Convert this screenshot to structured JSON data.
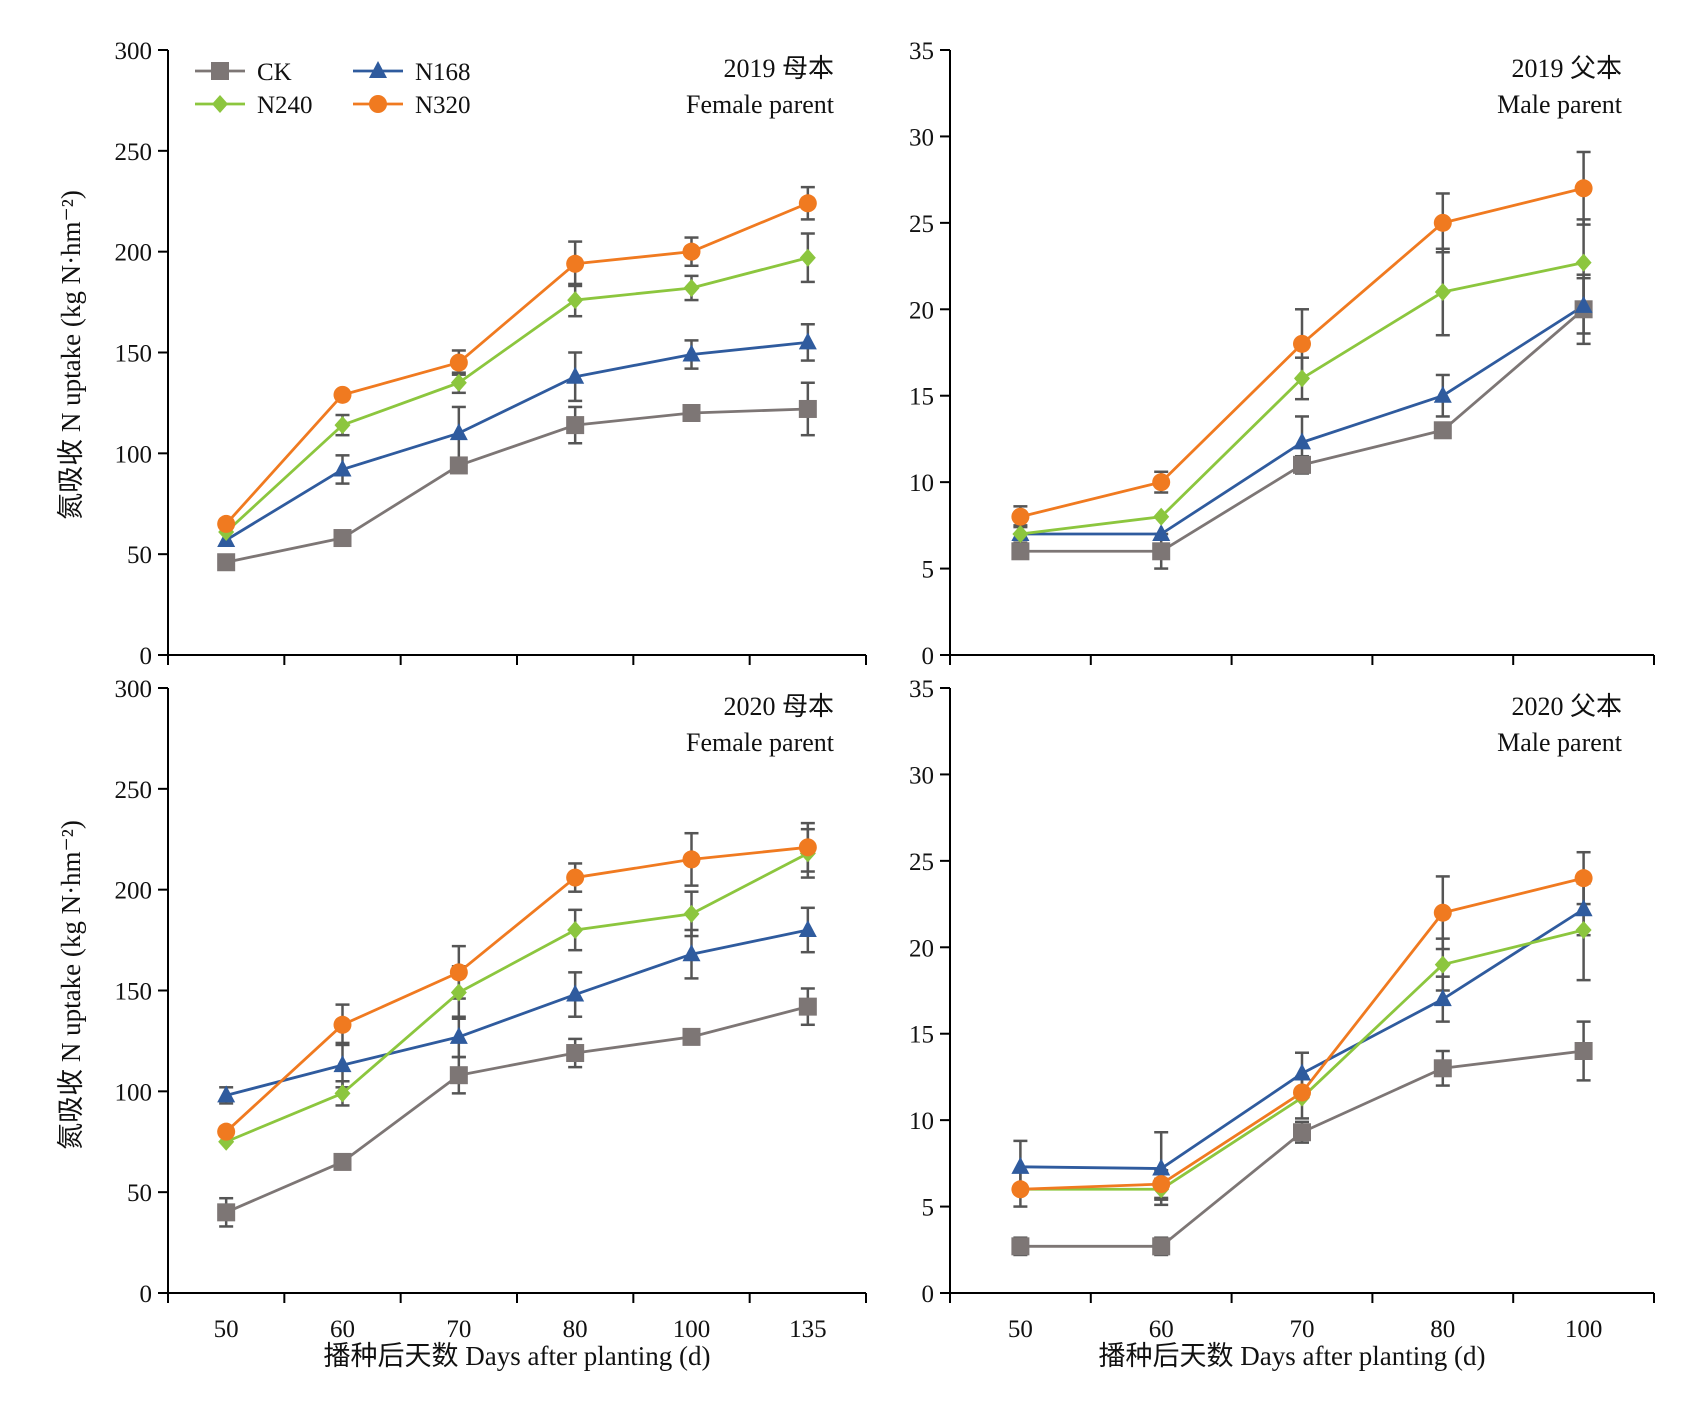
{
  "y_axis_title": "氮吸收 N uptake (kg N·hm⁻²)",
  "x_axis_title": "播种后天数 Days after planting (d)",
  "legend": [
    {
      "name": "CK",
      "color": "#7d7675",
      "marker": "square"
    },
    {
      "name": "N168",
      "color": "#2f5b9e",
      "marker": "triangle"
    },
    {
      "name": "N240",
      "color": "#8cc63e",
      "marker": "diamond"
    },
    {
      "name": "N320",
      "color": "#f07a20",
      "marker": "circle"
    }
  ],
  "chart_data": [
    {
      "type": "line",
      "title": [
        "2019 母本",
        "Female parent"
      ],
      "categories": [
        "50",
        "60",
        "70",
        "80",
        "100",
        "135"
      ],
      "ylim": [
        0,
        300
      ],
      "yticks": [
        0,
        50,
        100,
        150,
        200,
        250,
        300
      ],
      "show_x_tick_labels": false,
      "series": [
        {
          "name": "CK",
          "values": [
            46,
            58,
            94,
            114,
            120,
            122
          ],
          "errors": [
            0,
            0,
            0,
            9,
            0,
            13
          ]
        },
        {
          "name": "N168",
          "values": [
            57,
            92,
            110,
            138,
            149,
            155
          ],
          "errors": [
            0,
            7,
            13,
            12,
            7,
            9
          ]
        },
        {
          "name": "N240",
          "values": [
            61,
            114,
            135,
            176,
            182,
            197
          ],
          "errors": [
            0,
            5,
            5,
            8,
            6,
            12
          ]
        },
        {
          "name": "N320",
          "values": [
            65,
            129,
            145,
            194,
            200,
            224
          ],
          "errors": [
            0,
            0,
            6,
            11,
            7,
            8
          ]
        }
      ]
    },
    {
      "type": "line",
      "title": [
        "2019 父本",
        "Male parent"
      ],
      "categories": [
        "50",
        "60",
        "70",
        "80",
        "100"
      ],
      "ylim": [
        0,
        35
      ],
      "yticks": [
        0,
        5,
        10,
        15,
        20,
        25,
        30,
        35
      ],
      "show_x_tick_labels": false,
      "series": [
        {
          "name": "CK",
          "values": [
            6,
            6,
            11,
            13,
            20
          ],
          "errors": [
            0.4,
            1.0,
            0.5,
            0.4,
            2.0
          ]
        },
        {
          "name": "N168",
          "values": [
            7,
            7,
            12.3,
            15,
            20.2
          ],
          "errors": [
            0.5,
            0,
            1.5,
            1.2,
            1.6
          ]
        },
        {
          "name": "N240",
          "values": [
            7,
            8,
            16,
            21,
            22.7
          ],
          "errors": [
            0,
            0,
            1.2,
            2.5,
            2.5
          ]
        },
        {
          "name": "N320",
          "values": [
            8,
            10,
            18,
            25,
            27
          ],
          "errors": [
            0.6,
            0.6,
            2.0,
            1.7,
            2.1
          ]
        }
      ]
    },
    {
      "type": "line",
      "title": [
        "2020 母本",
        "Female parent"
      ],
      "categories": [
        "50",
        "60",
        "70",
        "80",
        "100",
        "135"
      ],
      "ylim": [
        0,
        300
      ],
      "yticks": [
        0,
        50,
        100,
        150,
        200,
        250,
        300
      ],
      "show_x_tick_labels": true,
      "series": [
        {
          "name": "CK",
          "values": [
            40,
            65,
            108,
            119,
            127,
            142
          ],
          "errors": [
            7,
            0,
            9,
            7,
            0,
            9
          ]
        },
        {
          "name": "N168",
          "values": [
            98,
            113,
            127,
            148,
            168,
            180
          ],
          "errors": [
            4,
            11,
            10,
            11,
            12,
            11
          ]
        },
        {
          "name": "N240",
          "values": [
            75,
            99,
            149,
            180,
            188,
            218
          ],
          "errors": [
            0,
            6,
            13,
            10,
            11,
            12
          ]
        },
        {
          "name": "N320",
          "values": [
            80,
            133,
            159,
            206,
            215,
            221
          ],
          "errors": [
            0,
            10,
            13,
            7,
            13,
            12
          ]
        }
      ]
    },
    {
      "type": "line",
      "title": [
        "2020 父本",
        "Male parent"
      ],
      "categories": [
        "50",
        "60",
        "70",
        "80",
        "100"
      ],
      "ylim": [
        0,
        35
      ],
      "yticks": [
        0,
        5,
        10,
        15,
        20,
        25,
        30,
        35
      ],
      "show_x_tick_labels": true,
      "series": [
        {
          "name": "CK",
          "values": [
            2.7,
            2.7,
            9.3,
            13,
            14
          ],
          "errors": [
            0.5,
            0.5,
            0.6,
            1.0,
            1.7
          ]
        },
        {
          "name": "N168",
          "values": [
            7.3,
            7.2,
            12.7,
            17,
            22.2
          ],
          "errors": [
            1.5,
            2.1,
            1.2,
            1.3,
            1.5
          ]
        },
        {
          "name": "N240",
          "values": [
            6,
            6,
            11.3,
            19,
            21
          ],
          "errors": [
            0,
            0.6,
            1.2,
            1.5,
            2.9
          ]
        },
        {
          "name": "N320",
          "values": [
            6,
            6.3,
            11.6,
            22,
            24
          ],
          "errors": [
            1.0,
            0.8,
            0,
            2.1,
            1.5
          ]
        }
      ]
    }
  ]
}
